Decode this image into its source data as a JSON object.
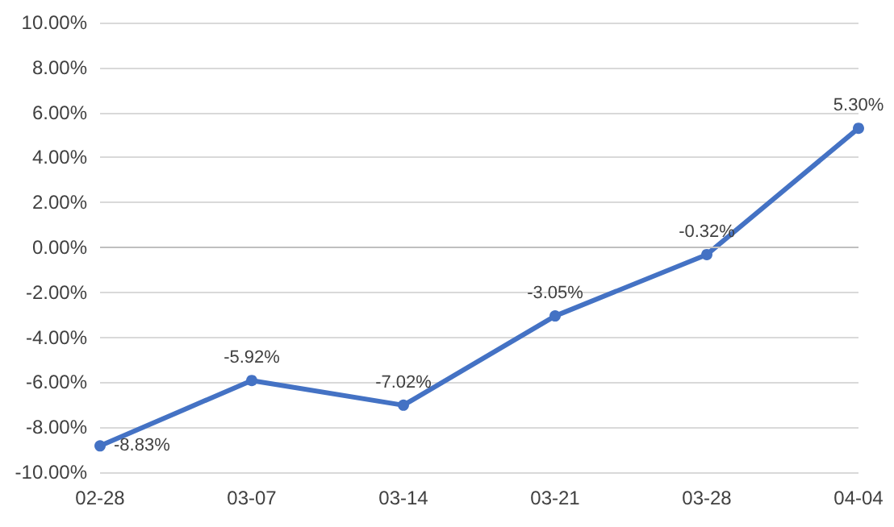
{
  "chart_data": {
    "type": "line",
    "categories": [
      "02-28",
      "03-07",
      "03-14",
      "03-21",
      "03-28",
      "04-04"
    ],
    "series": [
      {
        "color": "#4472c4",
        "values": [
          -8.83,
          -5.92,
          -7.02,
          -3.05,
          -0.32,
          5.3
        ],
        "value_labels": [
          "-8.83%",
          "-5.92%",
          "-7.02%",
          "-3.05%",
          "-0.32%",
          "5.30%"
        ]
      }
    ],
    "ylim": [
      -10,
      10
    ],
    "yticks": [
      {
        "value": -10,
        "label": "-10.00%"
      },
      {
        "value": -8,
        "label": "-8.00%"
      },
      {
        "value": -6,
        "label": "-6.00%"
      },
      {
        "value": -4,
        "label": "-4.00%"
      },
      {
        "value": -2,
        "label": "-2.00%"
      },
      {
        "value": 0,
        "label": "0.00%"
      },
      {
        "value": 2,
        "label": "2.00%"
      },
      {
        "value": 4,
        "label": "4.00%"
      },
      {
        "value": 6,
        "label": "6.00%"
      },
      {
        "value": 8,
        "label": "8.00%"
      },
      {
        "value": 10,
        "label": "10.00%"
      }
    ],
    "ref_lines": [
      {
        "axis": "y",
        "value": 0,
        "color": "#bfbfbf"
      }
    ],
    "grid": "y",
    "marker": "circle",
    "line_style": "solid"
  }
}
